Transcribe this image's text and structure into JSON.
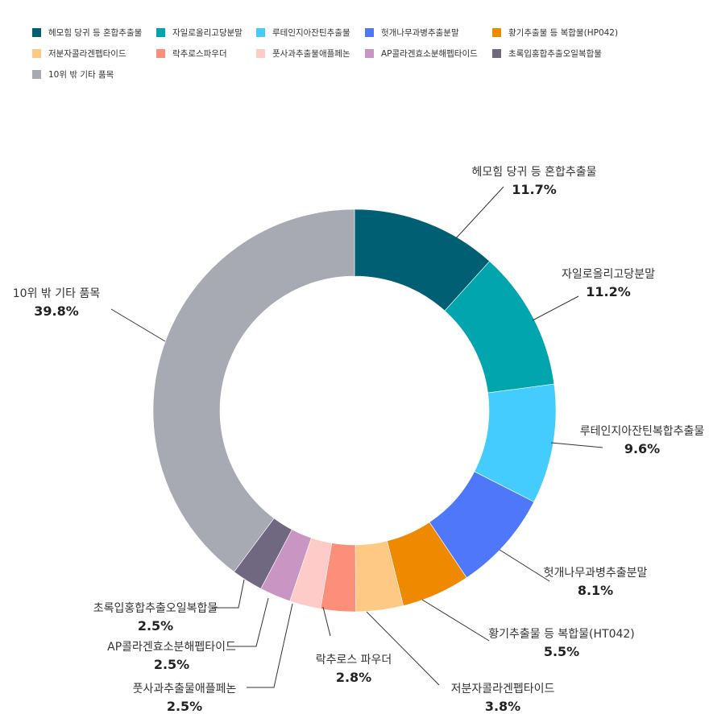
{
  "chart_data": {
    "type": "pie",
    "variant": "donut",
    "series": [
      {
        "label": "헤모힘 당귀 등 혼합추출물",
        "legend": "헤모힘 당귀 등 혼합추출물",
        "value": 11.7,
        "display": "11.7%",
        "color": "#005f73"
      },
      {
        "label": "자일로올리고당분말",
        "legend": "자일로올리고당분말",
        "value": 11.2,
        "display": "11.2%",
        "color": "#00a5ad"
      },
      {
        "label": "루테인지아잔틴복합추출물",
        "legend": "루테인지아잔틴추출물",
        "value": 9.6,
        "display": "9.6%",
        "color": "#43ccfd"
      },
      {
        "label": "헛개나무과병추출분말",
        "legend": "헛개나무과병추출분말",
        "value": 8.1,
        "display": "8.1%",
        "color": "#4e78f9"
      },
      {
        "label": "황기추출물 등 복합물(HT042)",
        "legend": "황기추출물 등 복합물(HP042)",
        "value": 5.5,
        "display": "5.5%",
        "color": "#ef8a00"
      },
      {
        "label": "저분자콜라겐펩타이드",
        "legend": "저분자콜라겐펩타이드",
        "value": 3.8,
        "display": "3.8%",
        "color": "#fdc985"
      },
      {
        "label": "락추로스 파우더",
        "legend": "락추로스파우더",
        "value": 2.8,
        "display": "2.8%",
        "color": "#fd8e79"
      },
      {
        "label": "풋사과추출물애플페논",
        "legend": "풋사과추출물애플페논",
        "value": 2.5,
        "display": "2.5%",
        "color": "#fecbc9"
      },
      {
        "label": "AP콜라겐효소분해펩타이드",
        "legend": "AP콜라겐효소분해펩타이드",
        "value": 2.5,
        "display": "2.5%",
        "color": "#c996c4"
      },
      {
        "label": "초록입홍합추출오일복합물",
        "legend": "초록입홍합추출오일복합물",
        "value": 2.5,
        "display": "2.5%",
        "color": "#6f6880"
      },
      {
        "label": "10위 밖 기타 품목",
        "legend": "10위 밖 기타 품목",
        "value": 39.8,
        "display": "39.8%",
        "color": "#a7a9b3"
      }
    ],
    "legend_position": "top-left"
  }
}
